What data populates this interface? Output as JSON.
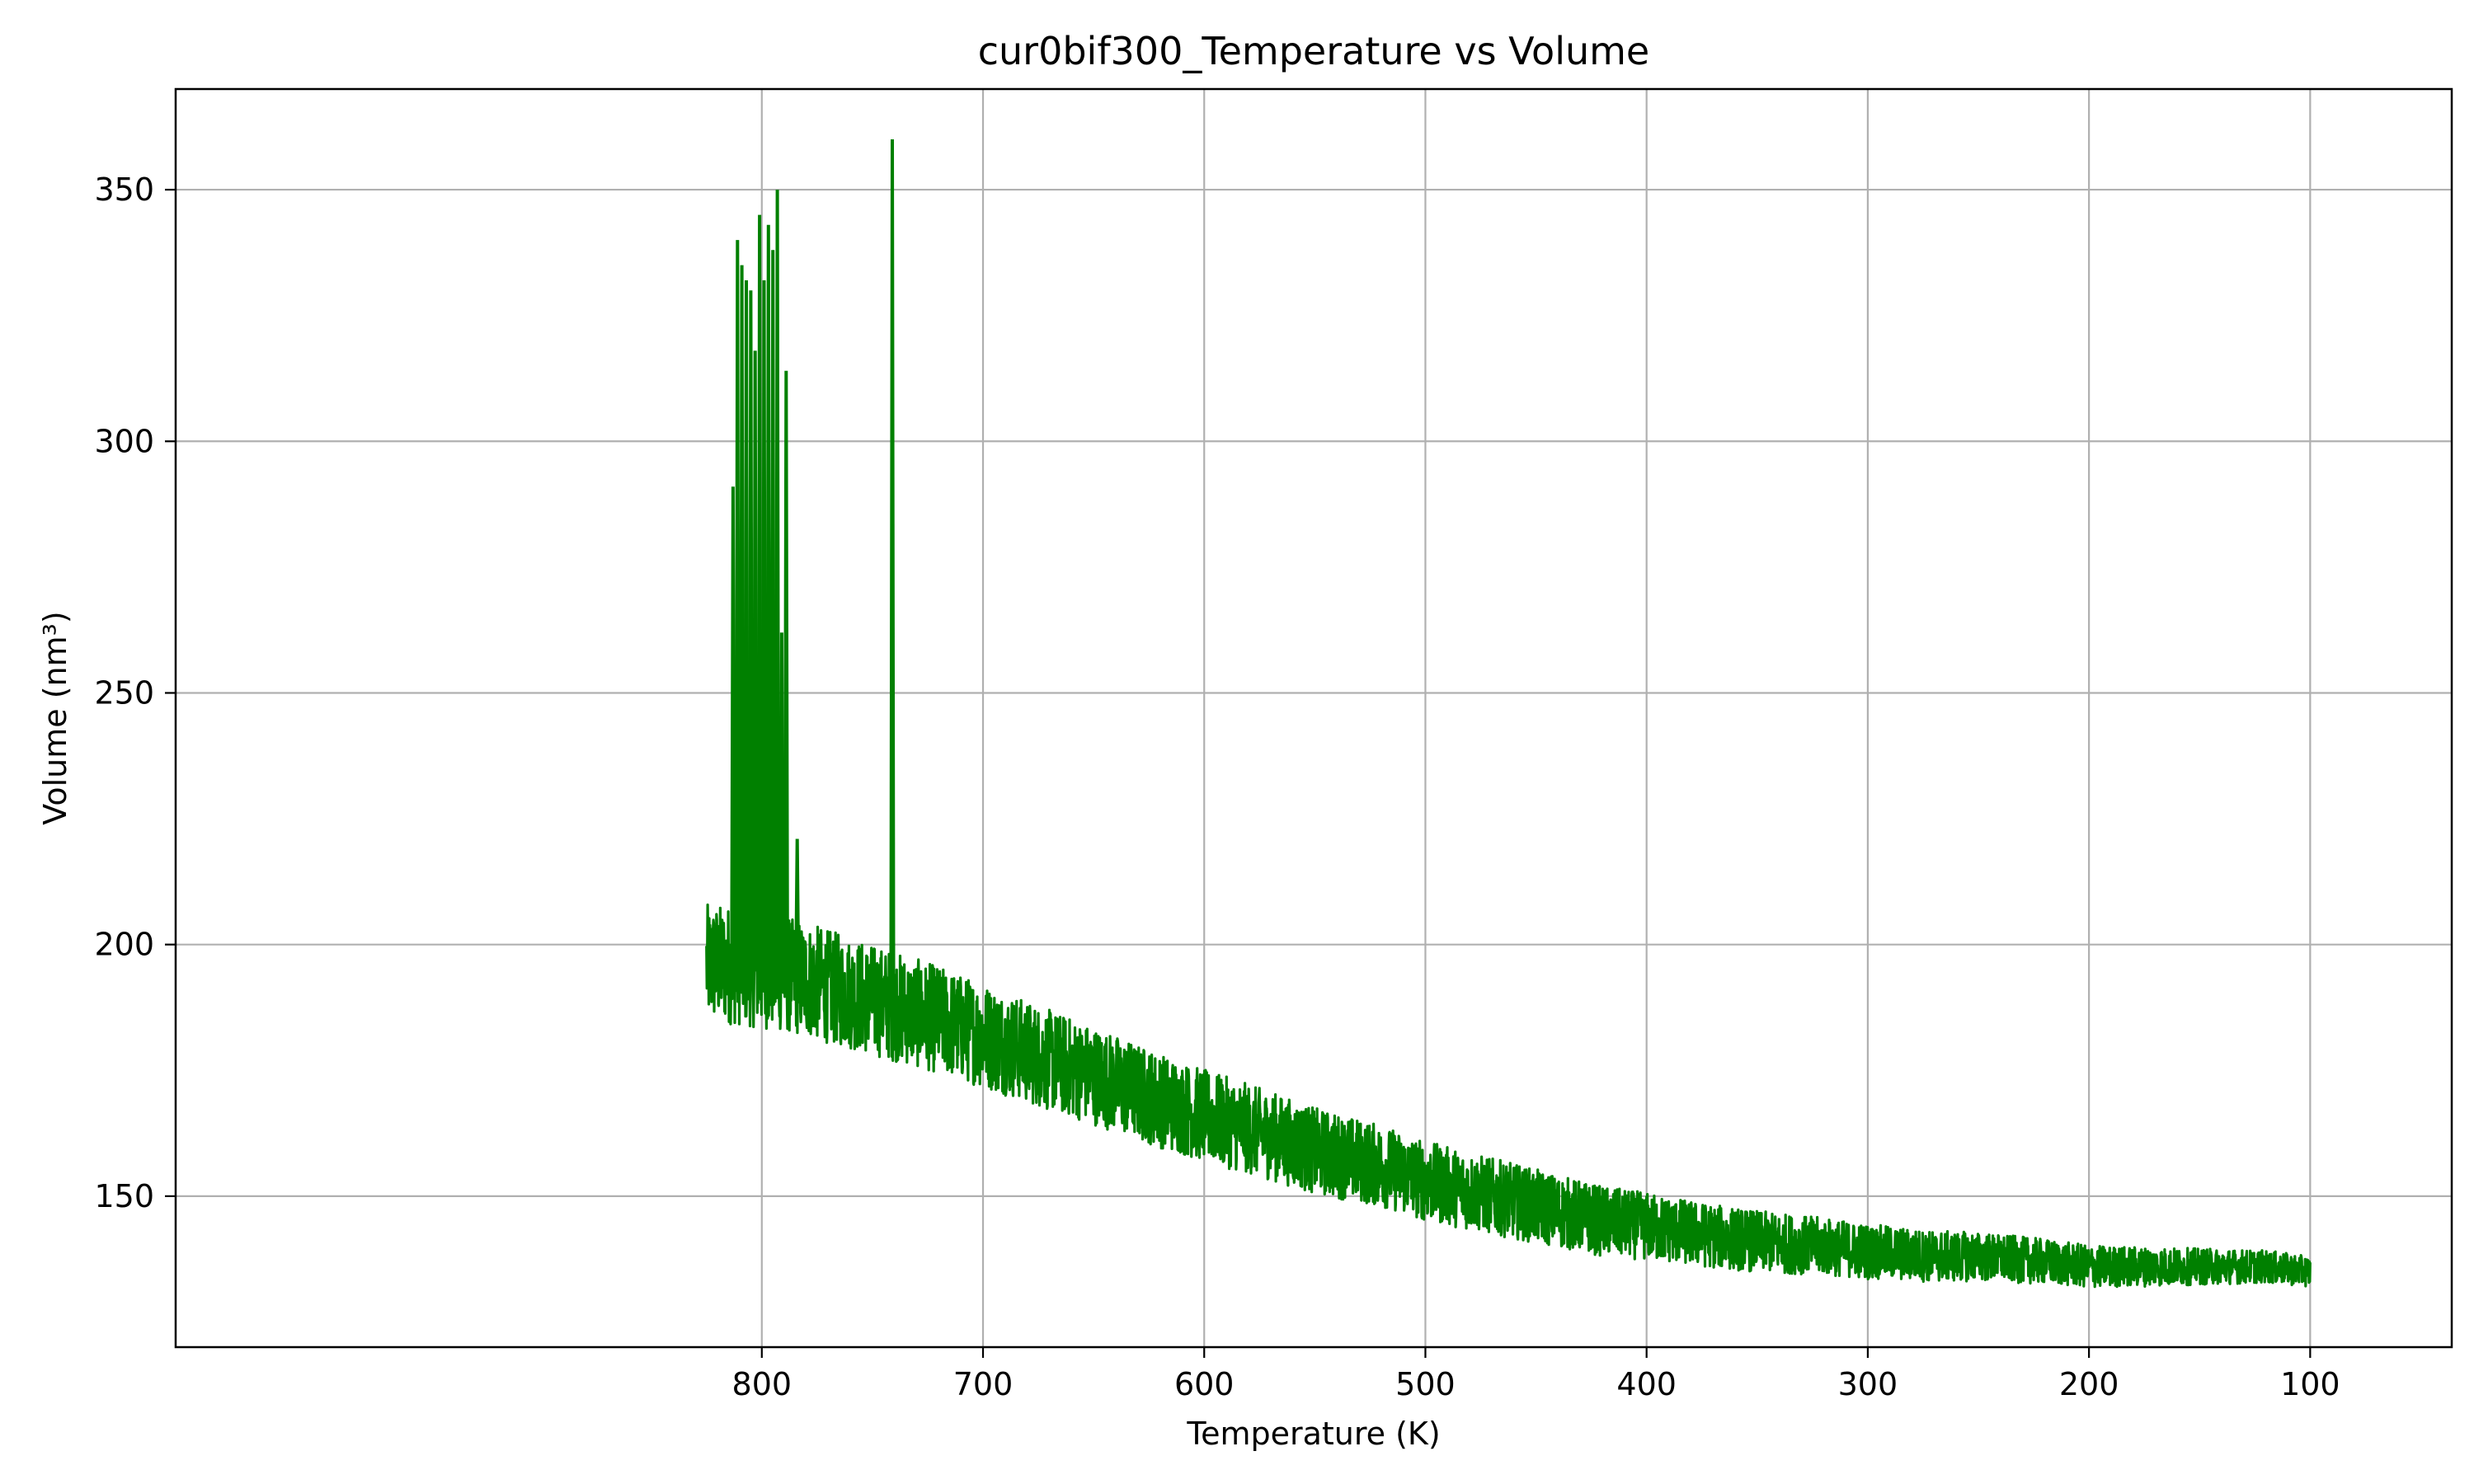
{
  "chart_data": {
    "type": "line",
    "title": "cur0bif300_Temperature vs Volume",
    "xlabel": "Temperature (K)",
    "ylabel": "Volume (nm³)",
    "x_inverted": true,
    "xlim": [
      1065,
      36
    ],
    "ylim": [
      120,
      370
    ],
    "x_ticks": [
      800,
      700,
      600,
      500,
      400,
      300,
      200,
      100
    ],
    "x_tick_labels": [
      "800",
      "700",
      "600",
      "500",
      "400",
      "300",
      "200",
      "100"
    ],
    "y_ticks": [
      150,
      200,
      250,
      300,
      350
    ],
    "y_tick_labels": [
      "150",
      "200",
      "250",
      "300",
      "350"
    ],
    "grid": true,
    "series": [
      {
        "color": "#008000",
        "trend_x": [
          825,
          815,
          800,
          780,
          750,
          720,
          700,
          670,
          650,
          620,
          600,
          570,
          550,
          520,
          500,
          470,
          450,
          420,
          400,
          370,
          350,
          320,
          300,
          270,
          250,
          220,
          200,
          170,
          150,
          120,
          100
        ],
        "trend_y": [
          196,
          196,
          195,
          193,
          189,
          185,
          182,
          177,
          174,
          169,
          166,
          162,
          159,
          156,
          153,
          150,
          148,
          145,
          144,
          142,
          141,
          140,
          139,
          138,
          138,
          137,
          136,
          136,
          136,
          136,
          135
        ],
        "spikes": [
          {
            "x": 813,
            "y": 291
          },
          {
            "x": 811,
            "y": 340
          },
          {
            "x": 809,
            "y": 335
          },
          {
            "x": 807,
            "y": 332
          },
          {
            "x": 805,
            "y": 330
          },
          {
            "x": 803,
            "y": 318
          },
          {
            "x": 801,
            "y": 345
          },
          {
            "x": 799,
            "y": 332
          },
          {
            "x": 797,
            "y": 343
          },
          {
            "x": 795,
            "y": 338
          },
          {
            "x": 793,
            "y": 350
          },
          {
            "x": 791,
            "y": 262
          },
          {
            "x": 789,
            "y": 314
          },
          {
            "x": 784,
            "y": 221
          },
          {
            "x": 741,
            "y": 360
          }
        ]
      }
    ]
  }
}
